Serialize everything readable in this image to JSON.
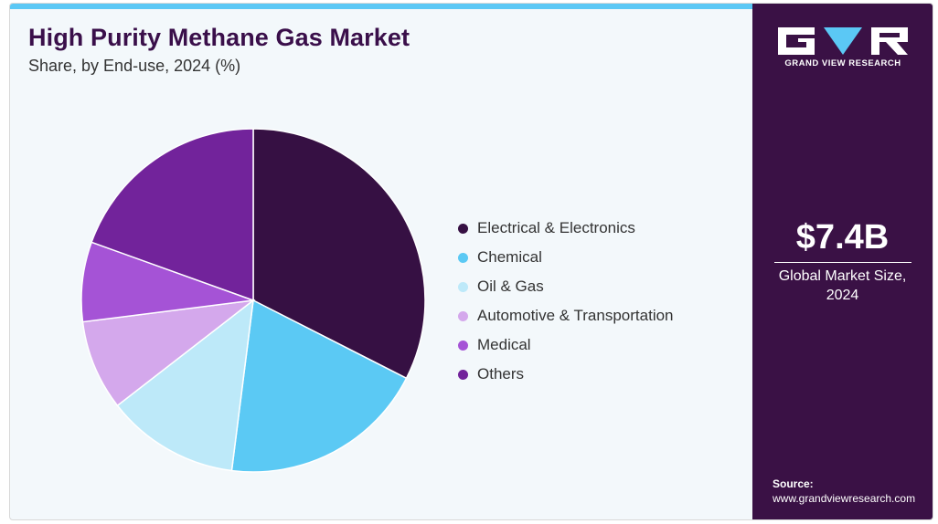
{
  "title": "High Purity Methane Gas Market",
  "subtitle": "Share, by End-use, 2024 (%)",
  "chart_data": {
    "type": "pie",
    "title": "High Purity Methane Gas Market",
    "subtitle": "Share, by End-use, 2024 (%)",
    "legend_position": "right",
    "categories": [
      "Electrical & Electronics",
      "Chemical",
      "Oil & Gas",
      "Automotive & Transportation",
      "Medical",
      "Others"
    ],
    "values": [
      32.5,
      19.5,
      12.5,
      8.5,
      7.5,
      19.5
    ],
    "colors": [
      "#361043",
      "#5bc9f4",
      "#bde9f9",
      "#d4a8ec",
      "#a553d6",
      "#72239b"
    ],
    "start_angle_deg": 0,
    "direction": "clockwise"
  },
  "side_panel": {
    "brand": "GRAND VIEW RESEARCH",
    "market_value": "$7.4B",
    "market_caption": "Global Market Size, 2024",
    "source_label": "Source:",
    "source_url": "www.grandviewresearch.com"
  },
  "colors": {
    "accent": "#5bc8f5",
    "panel": "#3a1145",
    "title": "#3a0f4a",
    "background": "#f3f8fb"
  }
}
